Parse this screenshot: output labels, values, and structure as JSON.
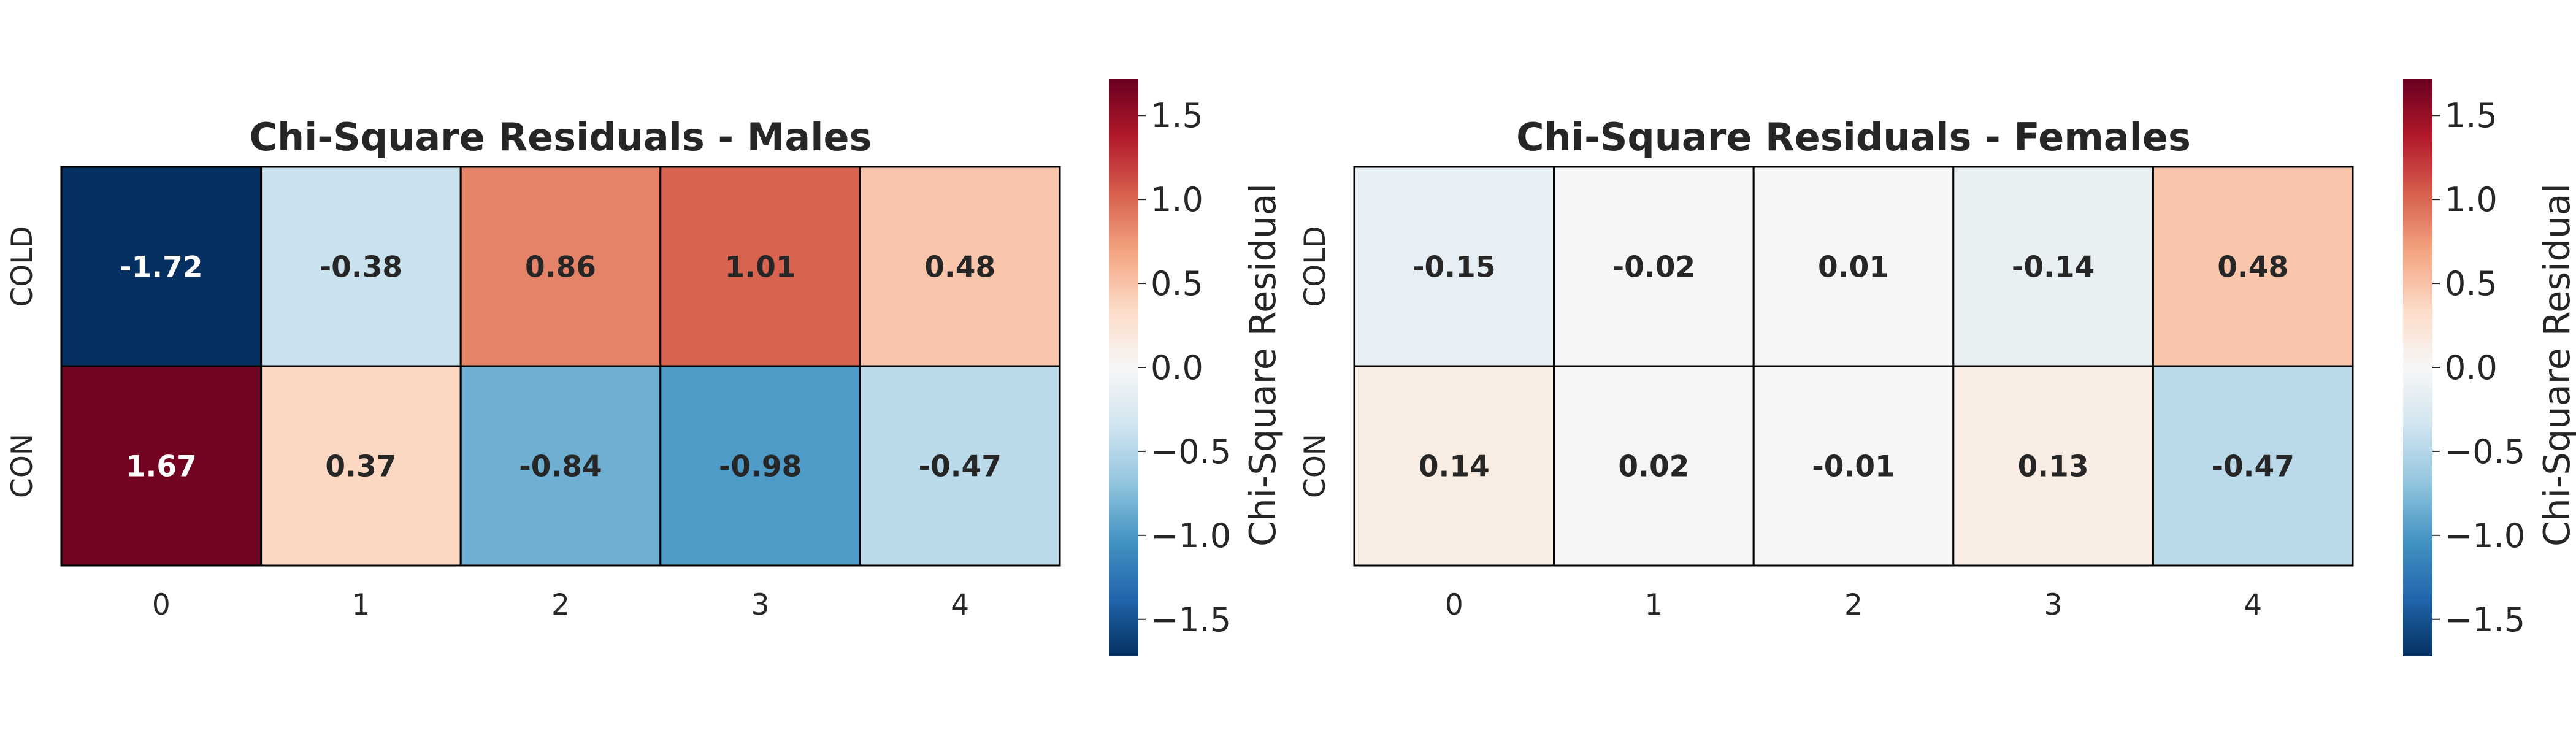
{
  "chart_data": [
    {
      "type": "heatmap",
      "title": "Chi-Square Residuals - Males",
      "xlabel": "",
      "ylabel": "",
      "x_categories": [
        "0",
        "1",
        "2",
        "3",
        "4"
      ],
      "y_categories": [
        "COLD",
        "CON"
      ],
      "values": [
        [
          -1.72,
          -0.38,
          0.86,
          1.01,
          0.48
        ],
        [
          1.67,
          0.37,
          -0.84,
          -0.98,
          -0.47
        ]
      ],
      "cell_labels": [
        [
          "-1.72",
          "-0.38",
          "0.86",
          "1.01",
          "0.48"
        ],
        [
          "1.67",
          "0.37",
          "-0.84",
          "-0.98",
          "-0.47"
        ]
      ],
      "colorbar": {
        "label": "Chi-Square Residual",
        "colormap": "RdBu_r",
        "range": [
          -1.72,
          1.72
        ],
        "ticks": [
          1.5,
          1.0,
          0.5,
          0.0,
          -0.5,
          -1.0,
          -1.5
        ],
        "tick_labels": [
          "1.5",
          "1.0",
          "0.5",
          "0.0",
          "−0.5",
          "−1.0",
          "−1.5"
        ]
      }
    },
    {
      "type": "heatmap",
      "title": "Chi-Square Residuals - Females",
      "xlabel": "",
      "ylabel": "",
      "x_categories": [
        "0",
        "1",
        "2",
        "3",
        "4"
      ],
      "y_categories": [
        "COLD",
        "CON"
      ],
      "values": [
        [
          -0.15,
          -0.02,
          0.01,
          -0.14,
          0.48
        ],
        [
          0.14,
          0.02,
          -0.01,
          0.13,
          -0.47
        ]
      ],
      "cell_labels": [
        [
          "-0.15",
          "-0.02",
          "0.01",
          "-0.14",
          "0.48"
        ],
        [
          "0.14",
          "0.02",
          "-0.01",
          "0.13",
          "-0.47"
        ]
      ],
      "colorbar": {
        "label": "Chi-Square Residual",
        "colormap": "RdBu_r",
        "range": [
          -1.72,
          1.72
        ],
        "ticks": [
          1.5,
          1.0,
          0.5,
          0.0,
          -0.5,
          -1.0,
          -1.5
        ],
        "tick_labels": [
          "1.5",
          "1.0",
          "0.5",
          "0.0",
          "−0.5",
          "−1.0",
          "−1.5"
        ]
      }
    }
  ],
  "colors": {
    "text": "#262626",
    "cell_border": "#000000",
    "colormap_stops": [
      "#053061",
      "#2166ac",
      "#4393c3",
      "#92c5de",
      "#d1e5f0",
      "#f7f7f7",
      "#fddbc7",
      "#f4a582",
      "#d6604d",
      "#b2182b",
      "#67001f"
    ]
  }
}
